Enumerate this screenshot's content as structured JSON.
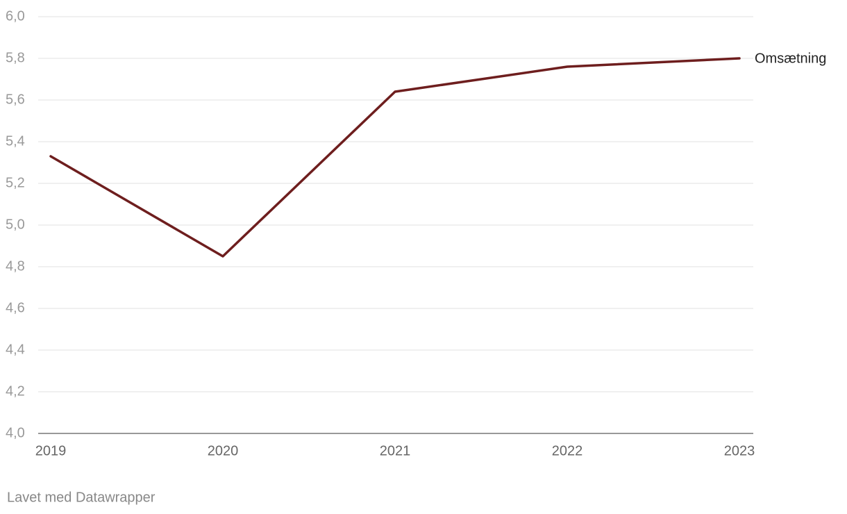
{
  "chart_data": {
    "type": "line",
    "x": [
      2019,
      2020,
      2021,
      2022,
      2023
    ],
    "xlim": [
      2019,
      2023
    ],
    "xticks": [
      2019,
      2020,
      2021,
      2022,
      2023
    ],
    "series": [
      {
        "name": "Omsætning",
        "color": "#6e1e1e",
        "values": [
          5.33,
          4.85,
          5.64,
          5.76,
          5.8
        ]
      }
    ],
    "ylim": [
      4,
      6
    ],
    "yticks": [
      {
        "value": 4,
        "label": "4,0"
      },
      {
        "value": 4.2,
        "label": "4,2"
      },
      {
        "value": 4.4,
        "label": "4,4"
      },
      {
        "value": 4.6,
        "label": "4,6"
      },
      {
        "value": 4.8,
        "label": "4,8"
      },
      {
        "value": 5,
        "label": "5,0"
      },
      {
        "value": 5.2,
        "label": "5,2"
      },
      {
        "value": 5.4,
        "label": "5,4"
      },
      {
        "value": 5.6,
        "label": "5,6"
      },
      {
        "value": 5.8,
        "label": "5,8"
      },
      {
        "value": 6,
        "label": "6,0"
      }
    ],
    "grid": true,
    "credit": "Lavet med Datawrapper"
  }
}
